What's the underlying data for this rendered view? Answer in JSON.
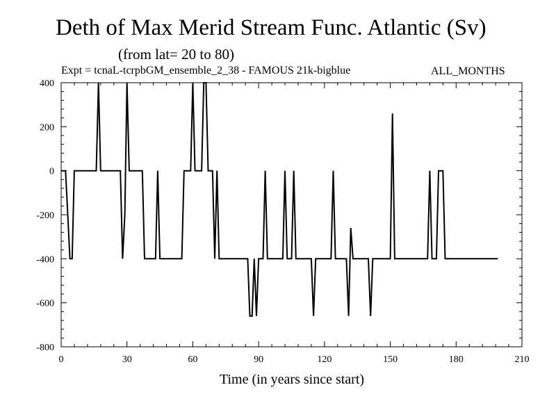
{
  "title": "Deth of Max Merid Stream Func. Atlantic (Sv)",
  "subtitle": "(from lat= 20 to 80)",
  "expt_line": "Expt = tcnaL-tcrpbGM_ensemble_2_38 - FAMOUS 21k-bigblue",
  "months_label": "ALL_MONTHS",
  "chart_data": {
    "type": "line",
    "title": "Deth of Max Merid Stream Func. Atlantic (Sv)",
    "xlabel": "Time (in years since start)",
    "ylabel": "",
    "xlim": [
      0,
      210
    ],
    "ylim": [
      -800,
      400
    ],
    "xticks": [
      0,
      30,
      60,
      90,
      120,
      150,
      180,
      210
    ],
    "yticks": [
      -800,
      -600,
      -400,
      -200,
      0,
      200,
      400
    ],
    "grid": false,
    "series": [
      {
        "color": "#000000",
        "points": [
          [
            0,
            0
          ],
          [
            2,
            0
          ],
          [
            3,
            -200
          ],
          [
            4,
            -400
          ],
          [
            5,
            -400
          ],
          [
            6,
            0
          ],
          [
            16,
            0
          ],
          [
            17,
            400
          ],
          [
            18,
            0
          ],
          [
            27,
            0
          ],
          [
            28,
            -400
          ],
          [
            29,
            -200
          ],
          [
            30,
            400
          ],
          [
            31,
            0
          ],
          [
            37,
            0
          ],
          [
            38,
            -400
          ],
          [
            43,
            -400
          ],
          [
            44,
            0
          ],
          [
            45,
            -400
          ],
          [
            55,
            -400
          ],
          [
            56,
            0
          ],
          [
            59,
            0
          ],
          [
            60,
            400
          ],
          [
            61,
            0
          ],
          [
            64,
            0
          ],
          [
            65,
            400
          ],
          [
            66,
            400
          ],
          [
            67,
            0
          ],
          [
            69,
            0
          ],
          [
            70,
            -400
          ],
          [
            71,
            0
          ],
          [
            72,
            -400
          ],
          [
            85,
            -400
          ],
          [
            86,
            -660
          ],
          [
            87,
            -660
          ],
          [
            88,
            -400
          ],
          [
            89,
            -660
          ],
          [
            90,
            -400
          ],
          [
            92,
            -400
          ],
          [
            93,
            0
          ],
          [
            94,
            -400
          ],
          [
            101,
            -400
          ],
          [
            102,
            0
          ],
          [
            103,
            -400
          ],
          [
            105,
            -400
          ],
          [
            106,
            0
          ],
          [
            107,
            -400
          ],
          [
            114,
            -400
          ],
          [
            115,
            -660
          ],
          [
            116,
            -400
          ],
          [
            123,
            -400
          ],
          [
            124,
            0
          ],
          [
            125,
            -400
          ],
          [
            130,
            -400
          ],
          [
            131,
            -660
          ],
          [
            132,
            -260
          ],
          [
            133,
            -400
          ],
          [
            140,
            -400
          ],
          [
            141,
            -660
          ],
          [
            142,
            -400
          ],
          [
            150,
            -400
          ],
          [
            151,
            260
          ],
          [
            152,
            -400
          ],
          [
            167,
            -400
          ],
          [
            168,
            0
          ],
          [
            169,
            -400
          ],
          [
            171,
            -400
          ],
          [
            172,
            0
          ],
          [
            174,
            0
          ],
          [
            175,
            -400
          ],
          [
            199,
            -400
          ]
        ]
      }
    ]
  }
}
